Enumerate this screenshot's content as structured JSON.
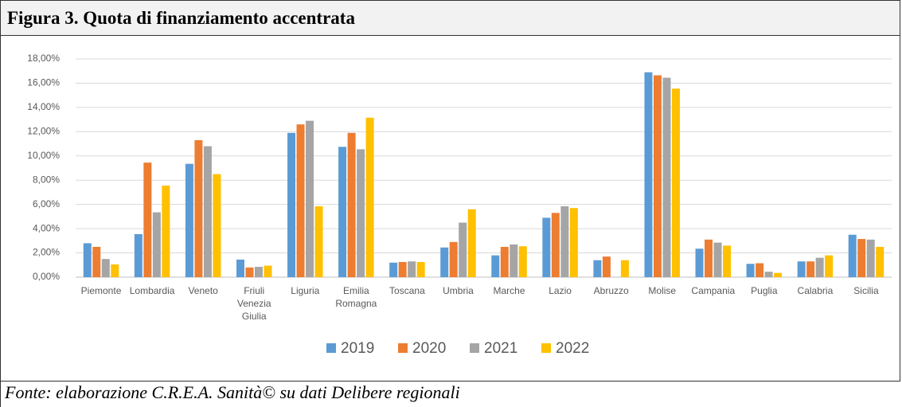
{
  "title": "Figura 3. Quota di finanziamento accentrata",
  "source": "Fonte: elaborazione C.R.E.A. Sanità© su dati Delibere regionali",
  "chart_data": {
    "type": "bar",
    "categories": [
      "Piemonte",
      "Lombardia",
      "Veneto",
      "Friuli Venezia Giulia",
      "Liguria",
      "Emilia Romagna",
      "Toscana",
      "Umbria",
      "Marche",
      "Lazio",
      "Abruzzo",
      "Molise",
      "Campania",
      "Puglia",
      "Calabria",
      "Sicilia"
    ],
    "series": [
      {
        "name": "2019",
        "color": "#5b9bd5",
        "values": [
          2.8,
          3.55,
          9.35,
          1.45,
          11.9,
          10.75,
          1.2,
          2.45,
          1.8,
          4.9,
          1.4,
          16.9,
          2.35,
          1.1,
          1.3,
          3.5
        ]
      },
      {
        "name": "2020",
        "color": "#ed7d31",
        "values": [
          2.5,
          9.45,
          11.3,
          0.8,
          12.6,
          11.9,
          1.25,
          2.9,
          2.5,
          5.3,
          1.7,
          16.65,
          3.1,
          1.15,
          1.3,
          3.15
        ]
      },
      {
        "name": "2021",
        "color": "#a5a5a5",
        "values": [
          1.5,
          5.35,
          10.8,
          0.85,
          12.9,
          10.55,
          1.3,
          4.5,
          2.7,
          5.85,
          null,
          16.45,
          2.85,
          0.45,
          1.6,
          3.1
        ]
      },
      {
        "name": "2022",
        "color": "#ffc000",
        "values": [
          1.05,
          7.55,
          8.5,
          0.95,
          5.85,
          13.15,
          1.25,
          5.6,
          2.55,
          5.7,
          1.4,
          15.55,
          2.6,
          0.35,
          1.8,
          2.5
        ]
      }
    ],
    "ylim": [
      0,
      18
    ],
    "yticks": [
      {
        "value": 0,
        "label": "0,00%"
      },
      {
        "value": 2,
        "label": "2,00%"
      },
      {
        "value": 4,
        "label": "4,00%"
      },
      {
        "value": 6,
        "label": "6,00%"
      },
      {
        "value": 8,
        "label": "8,00%"
      },
      {
        "value": 10,
        "label": "10,00%"
      },
      {
        "value": 12,
        "label": "12,00%"
      },
      {
        "value": 14,
        "label": "14,00%"
      },
      {
        "value": 16,
        "label": "16,00%"
      },
      {
        "value": 18,
        "label": "18,00%"
      }
    ],
    "grid": true,
    "legend": "bottom"
  }
}
